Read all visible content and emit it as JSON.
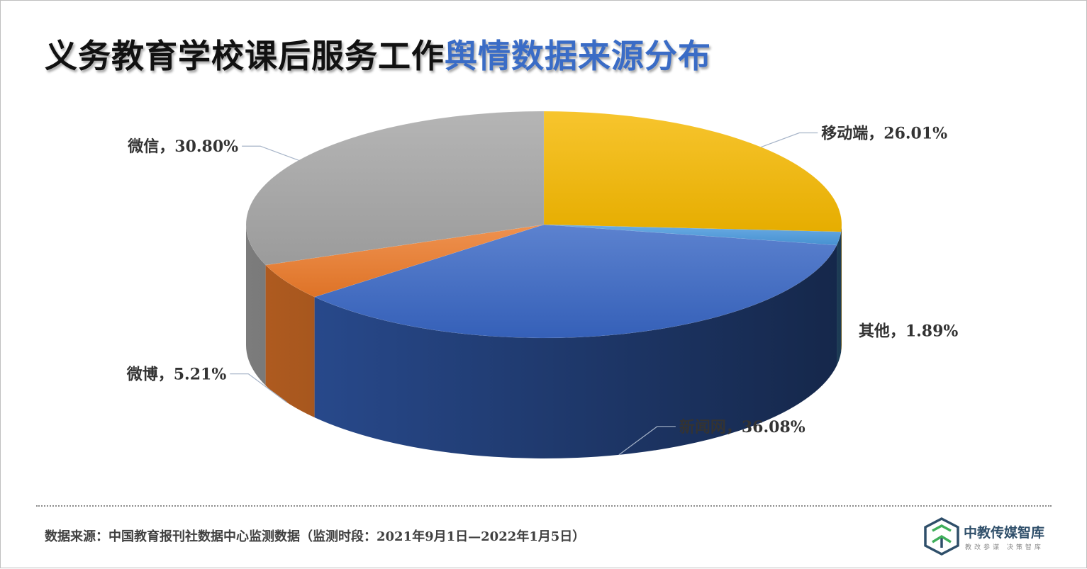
{
  "title": {
    "part1": "义务教育学校课后服务工作",
    "part2": "舆情数据来源分布"
  },
  "chart_data": {
    "type": "pie",
    "title": "义务教育学校课后服务工作舆情数据来源分布",
    "start_angle_deg": 0,
    "direction": "clockwise",
    "legend": "none",
    "slices": [
      {
        "name": "移动端",
        "value": 26.01,
        "label": "移动端，26.01%",
        "color": "#f5b800"
      },
      {
        "name": "其他",
        "value": 1.89,
        "label": "其他，1.89%",
        "color": "#4a9ade"
      },
      {
        "name": "新闻网",
        "value": 36.08,
        "label": "新闻网，36.08%",
        "color": "#3866c4"
      },
      {
        "name": "微博",
        "value": 5.21,
        "label": "微博，5.21%",
        "color": "#ec7a2a"
      },
      {
        "name": "微信",
        "value": 30.8,
        "label": "微信，30.80%",
        "color": "#a5a5a5"
      }
    ]
  },
  "footer": {
    "source": "数据来源：中国教育报刊社数据中心监测数据（监测时段：2021年9月1日—2022年1月5日）",
    "logo_name": "中教传媒智库",
    "logo_tagline": "教改参谋  决策智库",
    "logo_icon": "hexagon-cube-icon",
    "logo_colors": [
      "#2f4f6a",
      "#3fae5a"
    ]
  }
}
